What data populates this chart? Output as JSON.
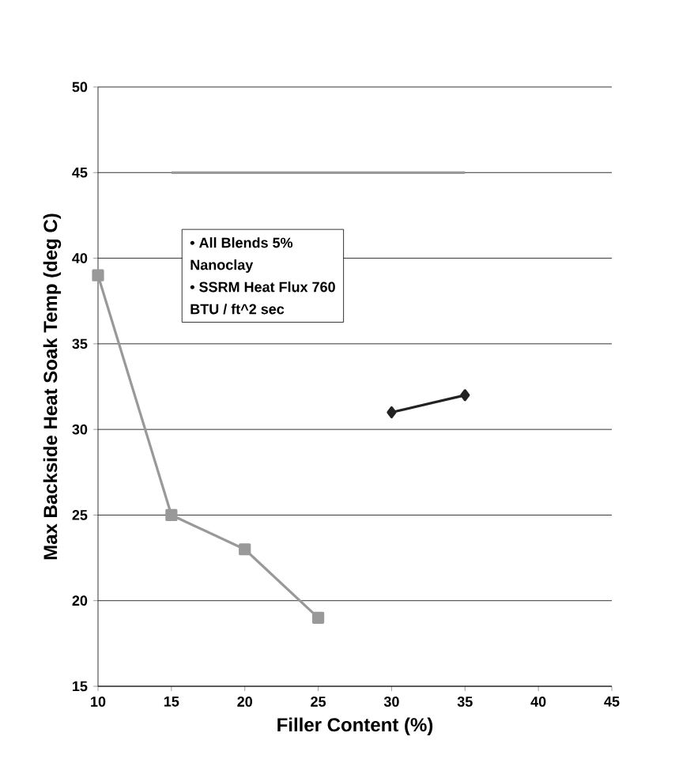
{
  "chart_data": {
    "type": "line",
    "xlabel": "Filler Content (%)",
    "ylabel": "Max Backside Heat Soak Temp (deg C)",
    "series": [
      {
        "color": "#999999",
        "x": [
          10,
          15,
          20,
          25
        ],
        "values": [
          39,
          25,
          23,
          19
        ],
        "marker": "square"
      },
      {
        "color": "#222222",
        "x": [
          30,
          35
        ],
        "values": [
          31,
          32
        ],
        "marker": "diamond"
      },
      {
        "color": "#999999",
        "x": [
          15,
          35
        ],
        "values": [
          45,
          45
        ],
        "marker": "none"
      }
    ],
    "annotations": [
      "• All Blends 5%",
      "Nanoclay",
      "• SSRM Heat Flux 760",
      "BTU / ft^2 sec"
    ],
    "xlim": [
      10,
      45
    ],
    "xticks": [
      10,
      15,
      20,
      25,
      30,
      35,
      40,
      45
    ],
    "ylim": [
      15,
      50
    ],
    "yticks": [
      15,
      20,
      25,
      30,
      35,
      40,
      45,
      50
    ],
    "grid": "y"
  }
}
